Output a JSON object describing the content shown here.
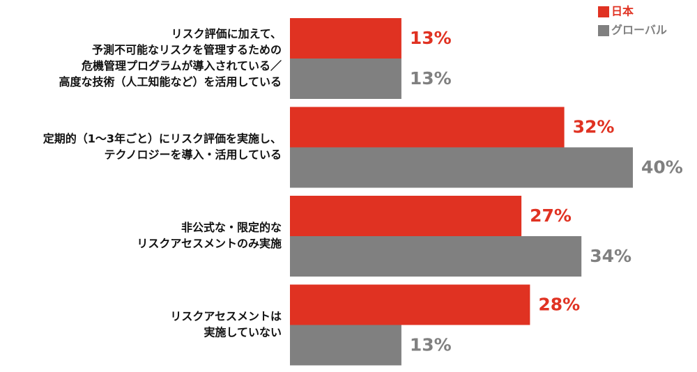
{
  "chart_data": {
    "type": "hbar-grouped",
    "categories": [
      [
        "リスク評価に加えて、",
        "予測不可能なリスクを管理するための",
        "危機管理プログラムが導入されている／",
        "高度な技術（人工知能など）を活用している"
      ],
      [
        "定期的（1～3年ごと）にリスク評価を実施し、",
        "テクノロジーを導入・活用している"
      ],
      [
        "非公式な・限定的な",
        "リスクアセスメントのみ実施"
      ],
      [
        "リスクアセスメントは",
        "実施していない"
      ]
    ],
    "series": [
      {
        "name": "日本",
        "color": "#e03222",
        "values": [
          13,
          32,
          27,
          28
        ],
        "value_labels": [
          "13%",
          "32%",
          "27%",
          "28%"
        ]
      },
      {
        "name": "グローバル",
        "color": "#808080",
        "values": [
          13,
          40,
          34,
          13
        ],
        "value_labels": [
          "13%",
          "40%",
          "34%",
          "13%"
        ]
      }
    ],
    "legend": "top-right"
  }
}
